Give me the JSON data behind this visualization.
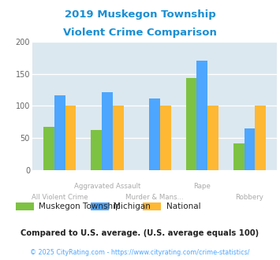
{
  "title_line1": "2019 Muskegon Township",
  "title_line2": "Violent Crime Comparison",
  "title_color": "#1b8fd2",
  "categories_top": [
    "",
    "Aggravated Assault",
    "",
    "Rape",
    ""
  ],
  "categories_bot": [
    "All Violent Crime",
    "",
    "Murder & Mans...",
    "",
    "Robbery"
  ],
  "muskegon": [
    68,
    63,
    0,
    144,
    42
  ],
  "michigan": [
    116,
    122,
    112,
    170,
    65
  ],
  "national": [
    100,
    100,
    100,
    100,
    100
  ],
  "colors": {
    "muskegon": "#7dc242",
    "michigan": "#4da6ff",
    "national": "#ffb833"
  },
  "ylim": [
    0,
    200
  ],
  "yticks": [
    0,
    50,
    100,
    150,
    200
  ],
  "plot_bg": "#dce8ef",
  "legend_labels": [
    "Muskegon Township",
    "Michigan",
    "National"
  ],
  "footnote1": "Compared to U.S. average. (U.S. average equals 100)",
  "footnote2": "© 2025 CityRating.com - https://www.cityrating.com/crime-statistics/",
  "footnote1_color": "#222222",
  "footnote2_color": "#4da6ff",
  "xlabel_color": "#aaaaaa"
}
